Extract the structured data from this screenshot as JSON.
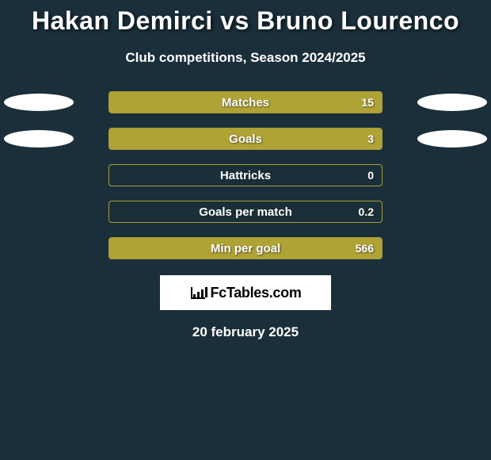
{
  "title": "Hakan Demirci vs Bruno Lourenco",
  "subtitle": "Club competitions, Season 2024/2025",
  "colors": {
    "background": "#1a2f3a",
    "bar_fill": "#b0a336",
    "bar_border": "#a89b3a",
    "chip": "#ffffff",
    "text": "#ffffff",
    "logo_bg": "#ffffff"
  },
  "stats": [
    {
      "label": "Matches",
      "value": "15",
      "fill_pct": 100,
      "left_chip": true,
      "right_chip": true
    },
    {
      "label": "Goals",
      "value": "3",
      "fill_pct": 100,
      "left_chip": true,
      "right_chip": true
    },
    {
      "label": "Hattricks",
      "value": "0",
      "fill_pct": 0,
      "left_chip": false,
      "right_chip": false
    },
    {
      "label": "Goals per match",
      "value": "0.2",
      "fill_pct": 0,
      "left_chip": false,
      "right_chip": false
    },
    {
      "label": "Min per goal",
      "value": "566",
      "fill_pct": 100,
      "left_chip": false,
      "right_chip": false
    }
  ],
  "logo_text": "FcTables.com",
  "date": "20 february 2025"
}
